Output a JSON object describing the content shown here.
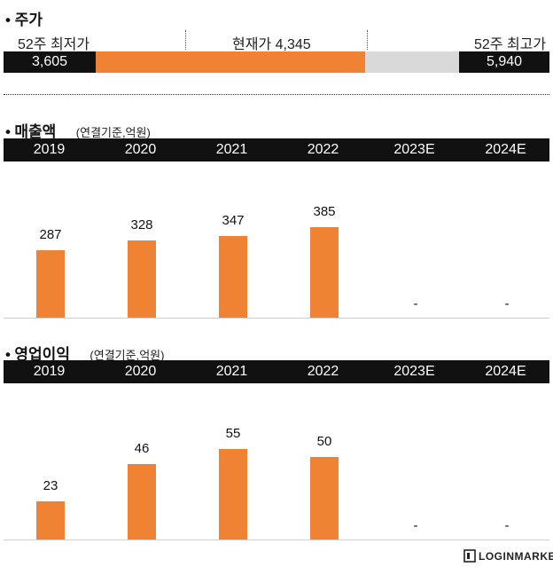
{
  "stock": {
    "title": "주가",
    "low_label": "52주 최저가",
    "current_label": "현재가 4,345",
    "high_label": "52주 최고가",
    "low_value": "3,605",
    "high_value": "5,940",
    "low": 3605,
    "current": 4345,
    "high": 5940,
    "colors": {
      "fill": "#ef8333",
      "track": "#d9d9d9",
      "end": "#111111"
    }
  },
  "chart_data": [
    {
      "type": "bar",
      "title": "매출액",
      "unit_note": "(연결기준,억원)",
      "categories": [
        "2019",
        "2020",
        "2021",
        "2022",
        "2023E",
        "2024E"
      ],
      "values": [
        287,
        328,
        347,
        385,
        null,
        null
      ],
      "labels": [
        "287",
        "328",
        "347",
        "385",
        "-",
        "-"
      ],
      "ylim": [
        0,
        385
      ],
      "color": "#ef8333"
    },
    {
      "type": "bar",
      "title": "영업이익",
      "unit_note": "(연결기준,억원)",
      "categories": [
        "2019",
        "2020",
        "2021",
        "2022",
        "2023E",
        "2024E"
      ],
      "values": [
        23,
        46,
        55,
        50,
        null,
        null
      ],
      "labels": [
        "23",
        "46",
        "55",
        "50",
        "-",
        "-"
      ],
      "ylim": [
        0,
        55
      ],
      "color": "#ef8333"
    }
  ],
  "footer": {
    "brand": "LOGINMARKET"
  }
}
